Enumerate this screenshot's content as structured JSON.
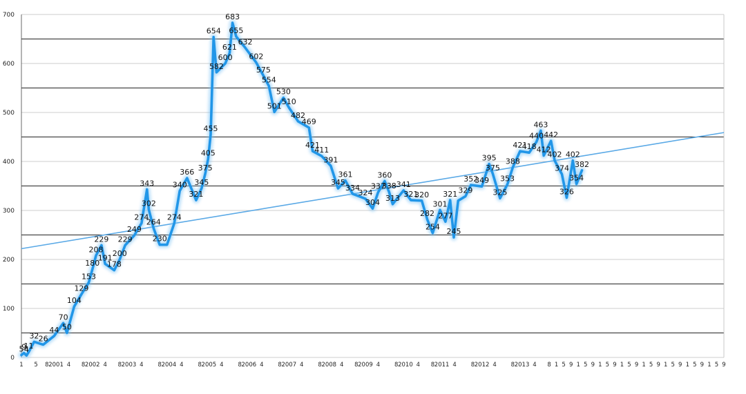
{
  "chart_data": {
    "type": "line",
    "title": "",
    "xlabel": "",
    "ylabel": "",
    "ylim": [
      0,
      700
    ],
    "y_ticks": [
      0,
      100,
      200,
      300,
      400,
      500,
      600,
      700
    ],
    "grid": "horizontal, every 50",
    "legend": "none",
    "series": [
      {
        "color": "#2196e8",
        "style": "thick glowing line",
        "points": [
          {
            "t": 0,
            "v": 5
          },
          {
            "t": 0.7,
            "v": 9
          },
          {
            "t": 1.4,
            "v": 4
          },
          {
            "t": 2,
            "v": 11
          },
          {
            "t": 3.5,
            "v": 32
          },
          {
            "t": 6,
            "v": 26
          },
          {
            "t": 9,
            "v": 44
          },
          {
            "t": 11.5,
            "v": 70
          },
          {
            "t": 12.5,
            "v": 50
          },
          {
            "t": 14.5,
            "v": 104
          },
          {
            "t": 16.5,
            "v": 129
          },
          {
            "t": 18.5,
            "v": 153
          },
          {
            "t": 19.5,
            "v": 180
          },
          {
            "t": 20.5,
            "v": 208
          },
          {
            "t": 22,
            "v": 229
          },
          {
            "t": 23,
            "v": 191
          },
          {
            "t": 25.5,
            "v": 178
          },
          {
            "t": 27,
            "v": 200
          },
          {
            "t": 28.5,
            "v": 229
          },
          {
            "t": 31,
            "v": 249
          },
          {
            "t": 33,
            "v": 274
          },
          {
            "t": 34.5,
            "v": 343
          },
          {
            "t": 35,
            "v": 302
          },
          {
            "t": 36.3,
            "v": 264
          },
          {
            "t": 38,
            "v": 230
          },
          {
            "t": 40,
            "v": 230
          },
          {
            "t": 42,
            "v": 274
          },
          {
            "t": 43.5,
            "v": 340
          },
          {
            "t": 45.5,
            "v": 366
          },
          {
            "t": 48,
            "v": 321
          },
          {
            "t": 49.5,
            "v": 345
          },
          {
            "t": 50.5,
            "v": 375
          },
          {
            "t": 51.3,
            "v": 405
          },
          {
            "t": 52,
            "v": 455
          },
          {
            "t": 52.8,
            "v": 654
          },
          {
            "t": 53.6,
            "v": 582
          },
          {
            "t": 56,
            "v": 600
          },
          {
            "t": 57.2,
            "v": 621
          },
          {
            "t": 58,
            "v": 683
          },
          {
            "t": 59,
            "v": 655
          },
          {
            "t": 61.5,
            "v": 632
          },
          {
            "t": 64.5,
            "v": 602
          },
          {
            "t": 66.5,
            "v": 575
          },
          {
            "t": 68,
            "v": 554
          },
          {
            "t": 69.5,
            "v": 501
          },
          {
            "t": 72,
            "v": 530
          },
          {
            "t": 73.5,
            "v": 510
          },
          {
            "t": 76,
            "v": 482
          },
          {
            "t": 79,
            "v": 469
          },
          {
            "t": 80,
            "v": 421
          },
          {
            "t": 82.5,
            "v": 411
          },
          {
            "t": 85,
            "v": 391
          },
          {
            "t": 87,
            "v": 345
          },
          {
            "t": 89,
            "v": 361
          },
          {
            "t": 91,
            "v": 334
          },
          {
            "t": 94.5,
            "v": 324
          },
          {
            "t": 96.5,
            "v": 304
          },
          {
            "t": 98,
            "v": 337
          },
          {
            "t": 99.8,
            "v": 360
          },
          {
            "t": 101,
            "v": 338
          },
          {
            "t": 102,
            "v": 313
          },
          {
            "t": 105,
            "v": 341
          },
          {
            "t": 107,
            "v": 321
          },
          {
            "t": 110,
            "v": 320
          },
          {
            "t": 111.5,
            "v": 282
          },
          {
            "t": 113,
            "v": 254
          },
          {
            "t": 115,
            "v": 301
          },
          {
            "t": 116.5,
            "v": 277
          },
          {
            "t": 117.8,
            "v": 321
          },
          {
            "t": 118.8,
            "v": 245
          },
          {
            "t": 120,
            "v": 320
          },
          {
            "t": 122,
            "v": 329
          },
          {
            "t": 123.5,
            "v": 352
          },
          {
            "t": 126.5,
            "v": 349
          },
          {
            "t": 128.5,
            "v": 395
          },
          {
            "t": 129.5,
            "v": 375
          },
          {
            "t": 131.5,
            "v": 325
          },
          {
            "t": 133.5,
            "v": 353
          },
          {
            "t": 135,
            "v": 388
          },
          {
            "t": 137,
            "v": 421
          },
          {
            "t": 139.5,
            "v": 418
          },
          {
            "t": 141.5,
            "v": 440
          },
          {
            "t": 142.7,
            "v": 463
          },
          {
            "t": 143.5,
            "v": 412
          },
          {
            "t": 145.5,
            "v": 442
          },
          {
            "t": 146.5,
            "v": 402
          },
          {
            "t": 148.5,
            "v": 374
          },
          {
            "t": 149.8,
            "v": 326
          },
          {
            "t": 151.5,
            "v": 402
          },
          {
            "t": 152.5,
            "v": 354
          },
          {
            "t": 154,
            "v": 382
          }
        ]
      }
    ],
    "data_labels": [
      {
        "t": 0,
        "v": 5,
        "text": "5"
      },
      {
        "t": 0.7,
        "v": 9,
        "text": "9"
      },
      {
        "t": 1.4,
        "v": 4,
        "text": "4"
      },
      {
        "t": 2,
        "v": 11,
        "text": "11"
      },
      {
        "t": 3.5,
        "v": 32,
        "text": "32"
      },
      {
        "t": 6,
        "v": 26,
        "text": "26"
      },
      {
        "t": 9,
        "v": 44,
        "text": "44"
      },
      {
        "t": 11.5,
        "v": 70,
        "text": "70"
      },
      {
        "t": 12.5,
        "v": 50,
        "text": "50"
      },
      {
        "t": 14.5,
        "v": 104,
        "text": "104"
      },
      {
        "t": 16.5,
        "v": 129,
        "text": "129"
      },
      {
        "t": 18.5,
        "v": 153,
        "text": "153"
      },
      {
        "t": 19.5,
        "v": 180,
        "text": "180"
      },
      {
        "t": 20.5,
        "v": 208,
        "text": "208"
      },
      {
        "t": 22,
        "v": 229,
        "text": "229"
      },
      {
        "t": 23,
        "v": 191,
        "text": "191"
      },
      {
        "t": 25.5,
        "v": 178,
        "text": "178"
      },
      {
        "t": 27,
        "v": 200,
        "text": "200"
      },
      {
        "t": 28.5,
        "v": 229,
        "text": "229"
      },
      {
        "t": 31,
        "v": 249,
        "text": "249"
      },
      {
        "t": 33,
        "v": 274,
        "text": "274"
      },
      {
        "t": 34.5,
        "v": 343,
        "text": "343"
      },
      {
        "t": 35,
        "v": 302,
        "text": "302"
      },
      {
        "t": 36.3,
        "v": 264,
        "text": "264"
      },
      {
        "t": 38,
        "v": 230,
        "text": "230"
      },
      {
        "t": 42,
        "v": 274,
        "text": "274"
      },
      {
        "t": 43.5,
        "v": 340,
        "text": "340"
      },
      {
        "t": 45.5,
        "v": 366,
        "text": "366"
      },
      {
        "t": 48,
        "v": 321,
        "text": "321"
      },
      {
        "t": 49.5,
        "v": 345,
        "text": "345"
      },
      {
        "t": 50.5,
        "v": 375,
        "text": "375"
      },
      {
        "t": 51.3,
        "v": 405,
        "text": "405"
      },
      {
        "t": 52,
        "v": 455,
        "text": "455"
      },
      {
        "t": 52.8,
        "v": 654,
        "text": "654"
      },
      {
        "t": 53.6,
        "v": 582,
        "text": "582"
      },
      {
        "t": 56,
        "v": 600,
        "text": "600"
      },
      {
        "t": 57.2,
        "v": 621,
        "text": "621"
      },
      {
        "t": 58,
        "v": 683,
        "text": "683"
      },
      {
        "t": 59,
        "v": 655,
        "text": "655"
      },
      {
        "t": 61.5,
        "v": 632,
        "text": "632"
      },
      {
        "t": 64.5,
        "v": 602,
        "text": "602"
      },
      {
        "t": 66.5,
        "v": 575,
        "text": "575"
      },
      {
        "t": 68,
        "v": 554,
        "text": "554"
      },
      {
        "t": 69.5,
        "v": 501,
        "text": "501"
      },
      {
        "t": 72,
        "v": 530,
        "text": "530"
      },
      {
        "t": 73.5,
        "v": 510,
        "text": "510"
      },
      {
        "t": 76,
        "v": 482,
        "text": "482"
      },
      {
        "t": 79,
        "v": 469,
        "text": "469"
      },
      {
        "t": 80,
        "v": 421,
        "text": "421"
      },
      {
        "t": 82.5,
        "v": 411,
        "text": "411"
      },
      {
        "t": 85,
        "v": 391,
        "text": "391"
      },
      {
        "t": 87,
        "v": 345,
        "text": "345"
      },
      {
        "t": 89,
        "v": 361,
        "text": "361"
      },
      {
        "t": 91,
        "v": 334,
        "text": "334"
      },
      {
        "t": 94.5,
        "v": 324,
        "text": "324"
      },
      {
        "t": 96.5,
        "v": 304,
        "text": "304"
      },
      {
        "t": 98,
        "v": 337,
        "text": "337"
      },
      {
        "t": 99.8,
        "v": 360,
        "text": "360"
      },
      {
        "t": 101,
        "v": 338,
        "text": "338"
      },
      {
        "t": 102,
        "v": 313,
        "text": "313"
      },
      {
        "t": 105,
        "v": 341,
        "text": "341"
      },
      {
        "t": 107,
        "v": 321,
        "text": "321"
      },
      {
        "t": 110,
        "v": 320,
        "text": "320"
      },
      {
        "t": 111.5,
        "v": 282,
        "text": "282"
      },
      {
        "t": 113,
        "v": 254,
        "text": "254"
      },
      {
        "t": 115,
        "v": 301,
        "text": "301"
      },
      {
        "t": 116.5,
        "v": 277,
        "text": "277"
      },
      {
        "t": 117.8,
        "v": 321,
        "text": "321"
      },
      {
        "t": 118.8,
        "v": 245,
        "text": "245"
      },
      {
        "t": 122,
        "v": 329,
        "text": "329"
      },
      {
        "t": 123.5,
        "v": 352,
        "text": "352"
      },
      {
        "t": 126.5,
        "v": 349,
        "text": "349"
      },
      {
        "t": 128.5,
        "v": 395,
        "text": "395"
      },
      {
        "t": 129.5,
        "v": 375,
        "text": "375"
      },
      {
        "t": 131.5,
        "v": 325,
        "text": "325"
      },
      {
        "t": 133.5,
        "v": 353,
        "text": "353"
      },
      {
        "t": 135,
        "v": 388,
        "text": "388"
      },
      {
        "t": 137,
        "v": 421,
        "text": "421"
      },
      {
        "t": 139.5,
        "v": 418,
        "text": "418"
      },
      {
        "t": 141.5,
        "v": 440,
        "text": "440"
      },
      {
        "t": 142.7,
        "v": 463,
        "text": "463"
      },
      {
        "t": 143.5,
        "v": 412,
        "text": "412"
      },
      {
        "t": 145.5,
        "v": 442,
        "text": "442"
      },
      {
        "t": 146.5,
        "v": 402,
        "text": "402"
      },
      {
        "t": 148.5,
        "v": 374,
        "text": "374"
      },
      {
        "t": 149.8,
        "v": 326,
        "text": "326"
      },
      {
        "t": 151.5,
        "v": 402,
        "text": "402"
      },
      {
        "t": 152.5,
        "v": 354,
        "text": "354"
      },
      {
        "t": 154,
        "v": 382,
        "text": "382"
      }
    ],
    "trendline": {
      "color": "#5aa9e6",
      "start_value": 222,
      "end_value": 459
    },
    "x_tick_labels": [
      {
        "t": 0,
        "text": "1"
      },
      {
        "t": 4,
        "text": "5"
      },
      {
        "t": 7,
        "text": "8"
      },
      {
        "t": 9.5,
        "text": "2001"
      },
      {
        "t": 13,
        "text": "4"
      },
      {
        "t": 17,
        "text": "8"
      },
      {
        "t": 19.5,
        "text": "2002"
      },
      {
        "t": 23,
        "text": "4"
      },
      {
        "t": 27,
        "text": "8"
      },
      {
        "t": 29.5,
        "text": "2003"
      },
      {
        "t": 33,
        "text": "4"
      },
      {
        "t": 38,
        "text": "8"
      },
      {
        "t": 40.5,
        "text": "2004"
      },
      {
        "t": 44,
        "text": "4"
      },
      {
        "t": 49,
        "text": "8"
      },
      {
        "t": 51.5,
        "text": "2005"
      },
      {
        "t": 55,
        "text": "4"
      },
      {
        "t": 60,
        "text": "8"
      },
      {
        "t": 62.5,
        "text": "2006"
      },
      {
        "t": 66,
        "text": "4"
      },
      {
        "t": 71,
        "text": "8"
      },
      {
        "t": 73.5,
        "text": "2007"
      },
      {
        "t": 77,
        "text": "4"
      },
      {
        "t": 82,
        "text": "8"
      },
      {
        "t": 84.5,
        "text": "2008"
      },
      {
        "t": 88,
        "text": "4"
      },
      {
        "t": 92,
        "text": "8"
      },
      {
        "t": 94.5,
        "text": "2009"
      },
      {
        "t": 98,
        "text": "4"
      },
      {
        "t": 103,
        "text": "8"
      },
      {
        "t": 105.5,
        "text": "2010"
      },
      {
        "t": 109,
        "text": "4"
      },
      {
        "t": 113,
        "text": "8"
      },
      {
        "t": 115.5,
        "text": "2011"
      },
      {
        "t": 119,
        "text": "4"
      },
      {
        "t": 124,
        "text": "8"
      },
      {
        "t": 126.5,
        "text": "2012"
      },
      {
        "t": 130,
        "text": "4"
      },
      {
        "t": 135,
        "text": "8"
      },
      {
        "t": 137.5,
        "text": "2013"
      },
      {
        "t": 141,
        "text": "4"
      },
      {
        "t": 145,
        "text": "8"
      },
      {
        "t": 147,
        "text": "1"
      },
      {
        "t": 149,
        "text": "5"
      },
      {
        "t": 151,
        "text": "9"
      },
      {
        "t": 153,
        "text": "1"
      },
      {
        "t": 155,
        "text": "5"
      },
      {
        "t": 157,
        "text": "9"
      },
      {
        "t": 159,
        "text": "1"
      },
      {
        "t": 161,
        "text": "5"
      },
      {
        "t": 163,
        "text": "9"
      },
      {
        "t": 165,
        "text": "1"
      },
      {
        "t": 167,
        "text": "5"
      },
      {
        "t": 169,
        "text": "9"
      },
      {
        "t": 171,
        "text": "1"
      },
      {
        "t": 173,
        "text": "5"
      },
      {
        "t": 175,
        "text": "9"
      },
      {
        "t": 177,
        "text": "1"
      },
      {
        "t": 179,
        "text": "5"
      },
      {
        "t": 181,
        "text": "9"
      },
      {
        "t": 183,
        "text": "1"
      },
      {
        "t": 185,
        "text": "5"
      },
      {
        "t": 187,
        "text": "9"
      },
      {
        "t": 189,
        "text": "1"
      },
      {
        "t": 191,
        "text": "5"
      },
      {
        "t": 193,
        "text": "9"
      }
    ]
  }
}
